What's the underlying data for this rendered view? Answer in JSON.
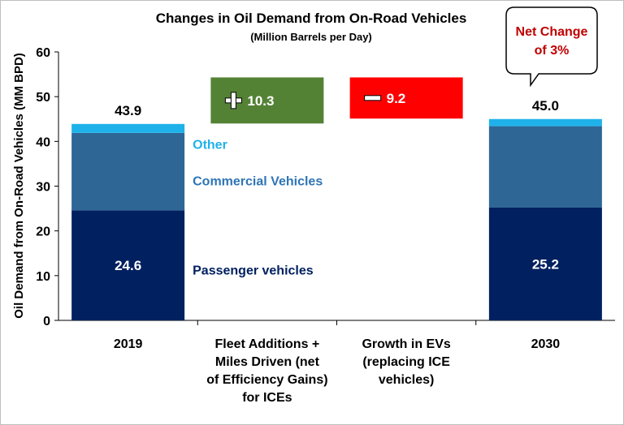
{
  "chart_data": {
    "type": "bar",
    "title": "Changes in Oil Demand from On-Road Vehicles",
    "subtitle": "(Million Barrels per Day)",
    "ylabel": "Oil Demand from On-Road Vehicles (MM BPD)",
    "ylim": [
      0,
      60
    ],
    "yticks": [
      0,
      10,
      20,
      30,
      40,
      50,
      60
    ],
    "categories": [
      [
        "2019"
      ],
      [
        "Fleet Additions +",
        "Miles Driven (net",
        "of Efficiency Gains)",
        "for ICEs"
      ],
      [
        "Growth in EVs",
        "(replacing ICE",
        "vehicles)"
      ],
      [
        "2030"
      ]
    ],
    "series": [
      {
        "name": "Passenger vehicles",
        "color": "#002060",
        "values": [
          24.6,
          null,
          null,
          25.2
        ]
      },
      {
        "name": "Commercial Vehicles",
        "color": "#2E6696",
        "values": [
          17.3,
          null,
          null,
          18.2
        ]
      },
      {
        "name": "Other",
        "color": "#1FB2EA",
        "values": [
          2.0,
          null,
          null,
          1.6
        ]
      }
    ],
    "totals": [
      "43.9",
      null,
      null,
      "45.0"
    ],
    "passenger_labels": [
      "24.6",
      null,
      null,
      "25.2"
    ],
    "changes": [
      {
        "category": 1,
        "sign": "plus",
        "value": 10.3,
        "label": "10.3",
        "color": "#548235",
        "from": 44,
        "to": 54.3
      },
      {
        "category": 2,
        "sign": "minus",
        "value": 9.2,
        "label": "9.2",
        "color": "#FF0000",
        "from": 45.1,
        "to": 54.3
      }
    ],
    "callout": {
      "lines": [
        "Net Change",
        "of 3%"
      ],
      "color": "#C00000"
    },
    "label_colors": {
      "Other": "#1FB2EA",
      "Commercial Vehicles": "#2E75B6",
      "Passenger vehicles": "#002060"
    },
    "grid": false,
    "legend": "inline labels"
  }
}
